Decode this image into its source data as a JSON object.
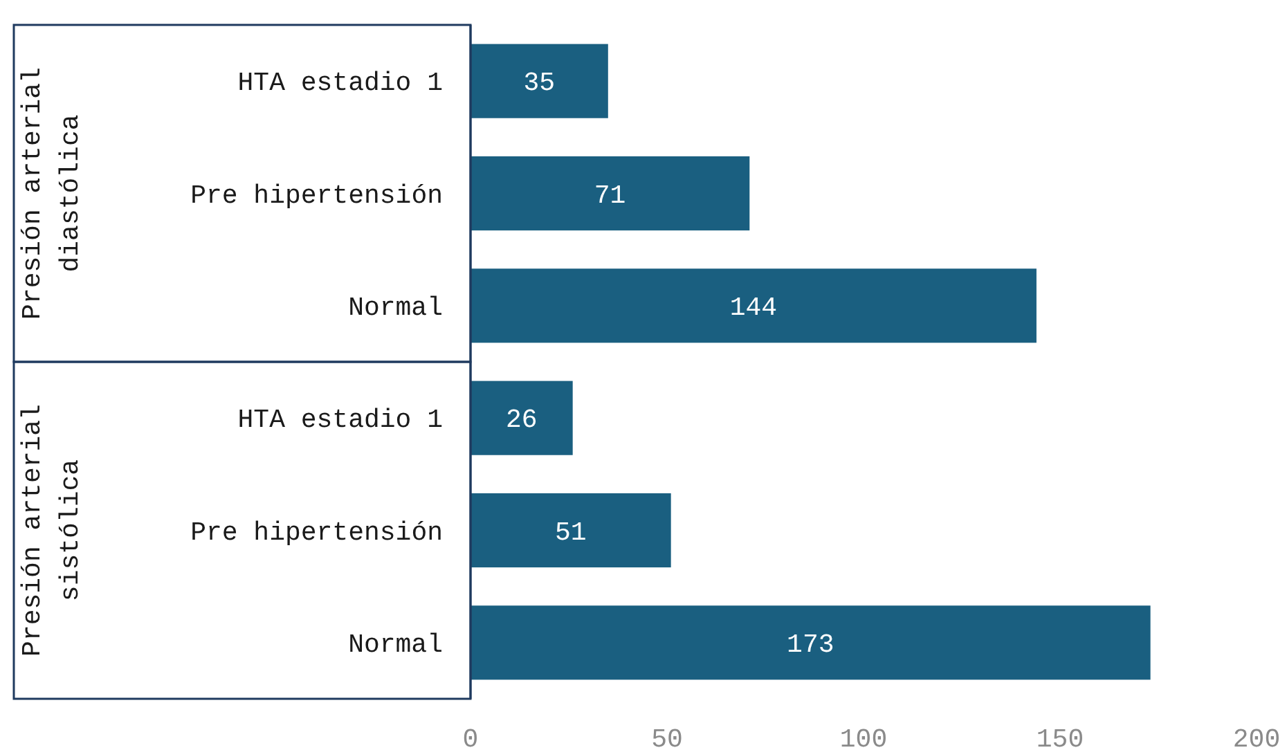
{
  "chart_data": {
    "type": "bar",
    "orientation": "horizontal",
    "categories": [
      "HTA estadio 1",
      "Pre hipertensión",
      "Normal",
      "HTA estadio 1",
      "Pre hipertensión",
      "Normal"
    ],
    "values": [
      35,
      71,
      144,
      26,
      51,
      173
    ],
    "color": "#1a5f80",
    "xlim": [
      0,
      200
    ],
    "xticks": [
      0,
      50,
      100,
      150,
      200
    ],
    "data_labels": true,
    "grid": false,
    "annotations": [
      "Presión arterial diastólica",
      "Presión arterial sistólica"
    ]
  }
}
